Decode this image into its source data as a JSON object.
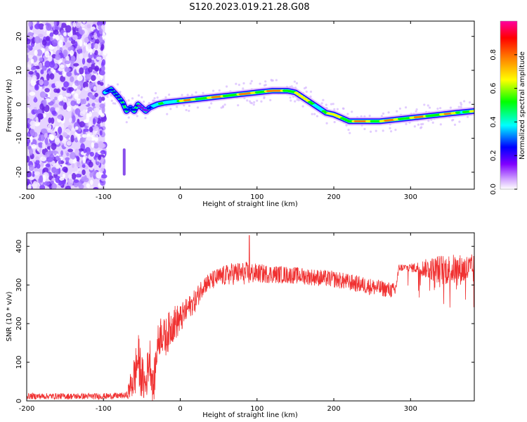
{
  "title": "S120.2023.019.21.28.G08",
  "chart_data": [
    {
      "type": "heatmap",
      "xlabel": "Height of straight line (km)",
      "ylabel": "Frequency (Hz)",
      "xlim": [
        -200,
        383
      ],
      "ylim": [
        -25,
        24.5
      ],
      "xticks": [
        -200,
        -100,
        0,
        100,
        200,
        300
      ],
      "yticks": [
        -20,
        -10,
        0,
        10,
        20
      ],
      "colorbar": {
        "label": "Normalized spectral amplitude",
        "range": [
          0,
          1
        ],
        "ticks": [
          "0.0",
          "0.2",
          "0.4",
          "0.6",
          "0.8"
        ],
        "tick_values": [
          0,
          0.2,
          0.4,
          0.6,
          0.8
        ],
        "colors": [
          "#ffffff",
          "#d9b3ff",
          "#7f00ff",
          "#0000ff",
          "#00ffff",
          "#00ff00",
          "#ffff00",
          "#ff8000",
          "#ff0000",
          "#ff00a0"
        ]
      },
      "noise_region_x": [
        -200,
        -98
      ],
      "ridge": {
        "x": [
          -98,
          -90,
          -80,
          -75,
          -70,
          -65,
          -60,
          -55,
          -50,
          -45,
          -40,
          -35,
          -30,
          -20,
          0,
          20,
          40,
          60,
          80,
          100,
          120,
          140,
          150,
          160,
          170,
          180,
          190,
          200,
          210,
          220,
          240,
          260,
          280,
          300,
          320,
          340,
          360,
          383
        ],
        "freq": [
          3.5,
          4.5,
          2,
          0.5,
          -2,
          -1,
          -2,
          0,
          -1,
          -2,
          -1,
          -0.5,
          0,
          0.5,
          1,
          1.5,
          2,
          2.5,
          3,
          3.5,
          4,
          4,
          3.5,
          2,
          0.5,
          -1,
          -2.5,
          -3,
          -4,
          -5,
          -5,
          -5,
          -4.5,
          -4,
          -3.5,
          -3,
          -2.5,
          -2
        ],
        "amp": [
          0.6,
          0.5,
          0.55,
          0.5,
          0.5,
          0.45,
          0.45,
          0.45,
          0.45,
          0.45,
          0.5,
          0.55,
          0.6,
          0.7,
          0.85,
          0.9,
          0.9,
          0.9,
          0.95,
          0.95,
          0.95,
          0.95,
          0.9,
          0.85,
          0.85,
          0.8,
          0.8,
          0.85,
          0.9,
          0.95,
          0.95,
          0.95,
          0.9,
          0.9,
          0.9,
          0.9,
          0.9,
          0.85
        ]
      },
      "isolated_feature": {
        "x": -73,
        "freq_range": [
          -21,
          -13
        ]
      }
    },
    {
      "type": "line",
      "xlabel": "Height of straight line (km)",
      "ylabel": "SNR (10 * v/v)",
      "xlim": [
        -200,
        383
      ],
      "ylim": [
        0,
        435
      ],
      "xticks": [
        -200,
        -100,
        0,
        100,
        200,
        300
      ],
      "yticks": [
        0,
        100,
        200,
        300,
        400
      ],
      "series": [
        {
          "color": "#f03030",
          "x": [
            -200,
            -150,
            -100,
            -70,
            -60,
            -55,
            -50,
            -45,
            -40,
            -35,
            -30,
            -25,
            -20,
            -10,
            0,
            10,
            20,
            30,
            50,
            70,
            90,
            100,
            150,
            200,
            250,
            280,
            285,
            300,
            340,
            383
          ],
          "base": [
            12,
            12,
            12,
            14,
            60,
            110,
            60,
            40,
            120,
            30,
            140,
            180,
            160,
            200,
            210,
            240,
            260,
            300,
            320,
            330,
            330,
            330,
            325,
            315,
            295,
            285,
            345,
            345,
            340,
            340
          ],
          "jitter": [
            8,
            8,
            8,
            8,
            60,
            70,
            60,
            50,
            60,
            50,
            50,
            50,
            50,
            50,
            40,
            30,
            30,
            25,
            25,
            30,
            30,
            25,
            22,
            22,
            22,
            20,
            10,
            10,
            40,
            40
          ]
        }
      ],
      "peak": {
        "x": 90,
        "y": 428
      }
    }
  ]
}
